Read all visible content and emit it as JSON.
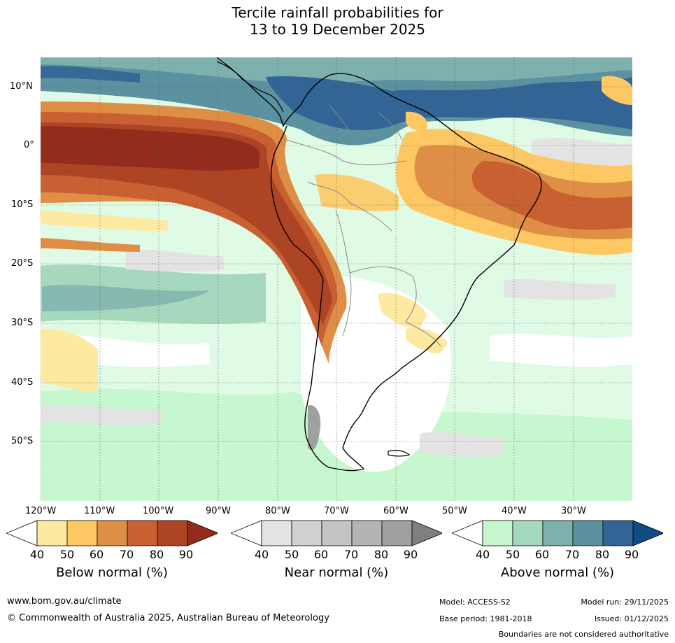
{
  "title": {
    "line1": "Tercile rainfall probabilities for",
    "line2": "13 to 19 December 2025"
  },
  "map": {
    "lat_labels": [
      "10°N",
      "0°",
      "10°S",
      "20°S",
      "30°S",
      "40°S",
      "50°S"
    ],
    "lon_labels": [
      "120°W",
      "110°W",
      "100°W",
      "90°W",
      "80°W",
      "70°W",
      "60°W",
      "50°W",
      "40°W",
      "30°W"
    ]
  },
  "colorbars": [
    {
      "name": "below",
      "title": "Below normal (%)",
      "ticks": [
        "40",
        "50",
        "60",
        "70",
        "80",
        "90"
      ],
      "colors": [
        "#ffffff",
        "#fde9a0",
        "#fdc863",
        "#df8f45",
        "#c96032",
        "#ad4525",
        "#922c1c"
      ]
    },
    {
      "name": "near",
      "title": "Near normal (%)",
      "ticks": [
        "40",
        "50",
        "60",
        "70",
        "80",
        "90"
      ],
      "colors": [
        "#ffffff",
        "#e3e3e3",
        "#d1d1d1",
        "#c4c4c4",
        "#b4b4b4",
        "#a0a0a0",
        "#7f7f7f"
      ]
    },
    {
      "name": "above",
      "title": "Above normal (%)",
      "ticks": [
        "40",
        "50",
        "60",
        "70",
        "80",
        "90"
      ],
      "colors": [
        "#ffffff",
        "#c6f7cf",
        "#a6d8be",
        "#7eb1ad",
        "#5c92a0",
        "#326595",
        "#124a82"
      ]
    }
  ],
  "footer": {
    "url": "www.bom.gov.au/climate",
    "copyright": "© Commonwealth of Australia 2025, Australian Bureau of Meteorology",
    "model": "Model: ACCESS-S2",
    "model_run": "Model run: 29/11/2025",
    "base_period": "Base period: 1981-2018",
    "issued": "Issued: 01/12/2025",
    "boundaries": "Boundaries are not considered authoritative"
  }
}
